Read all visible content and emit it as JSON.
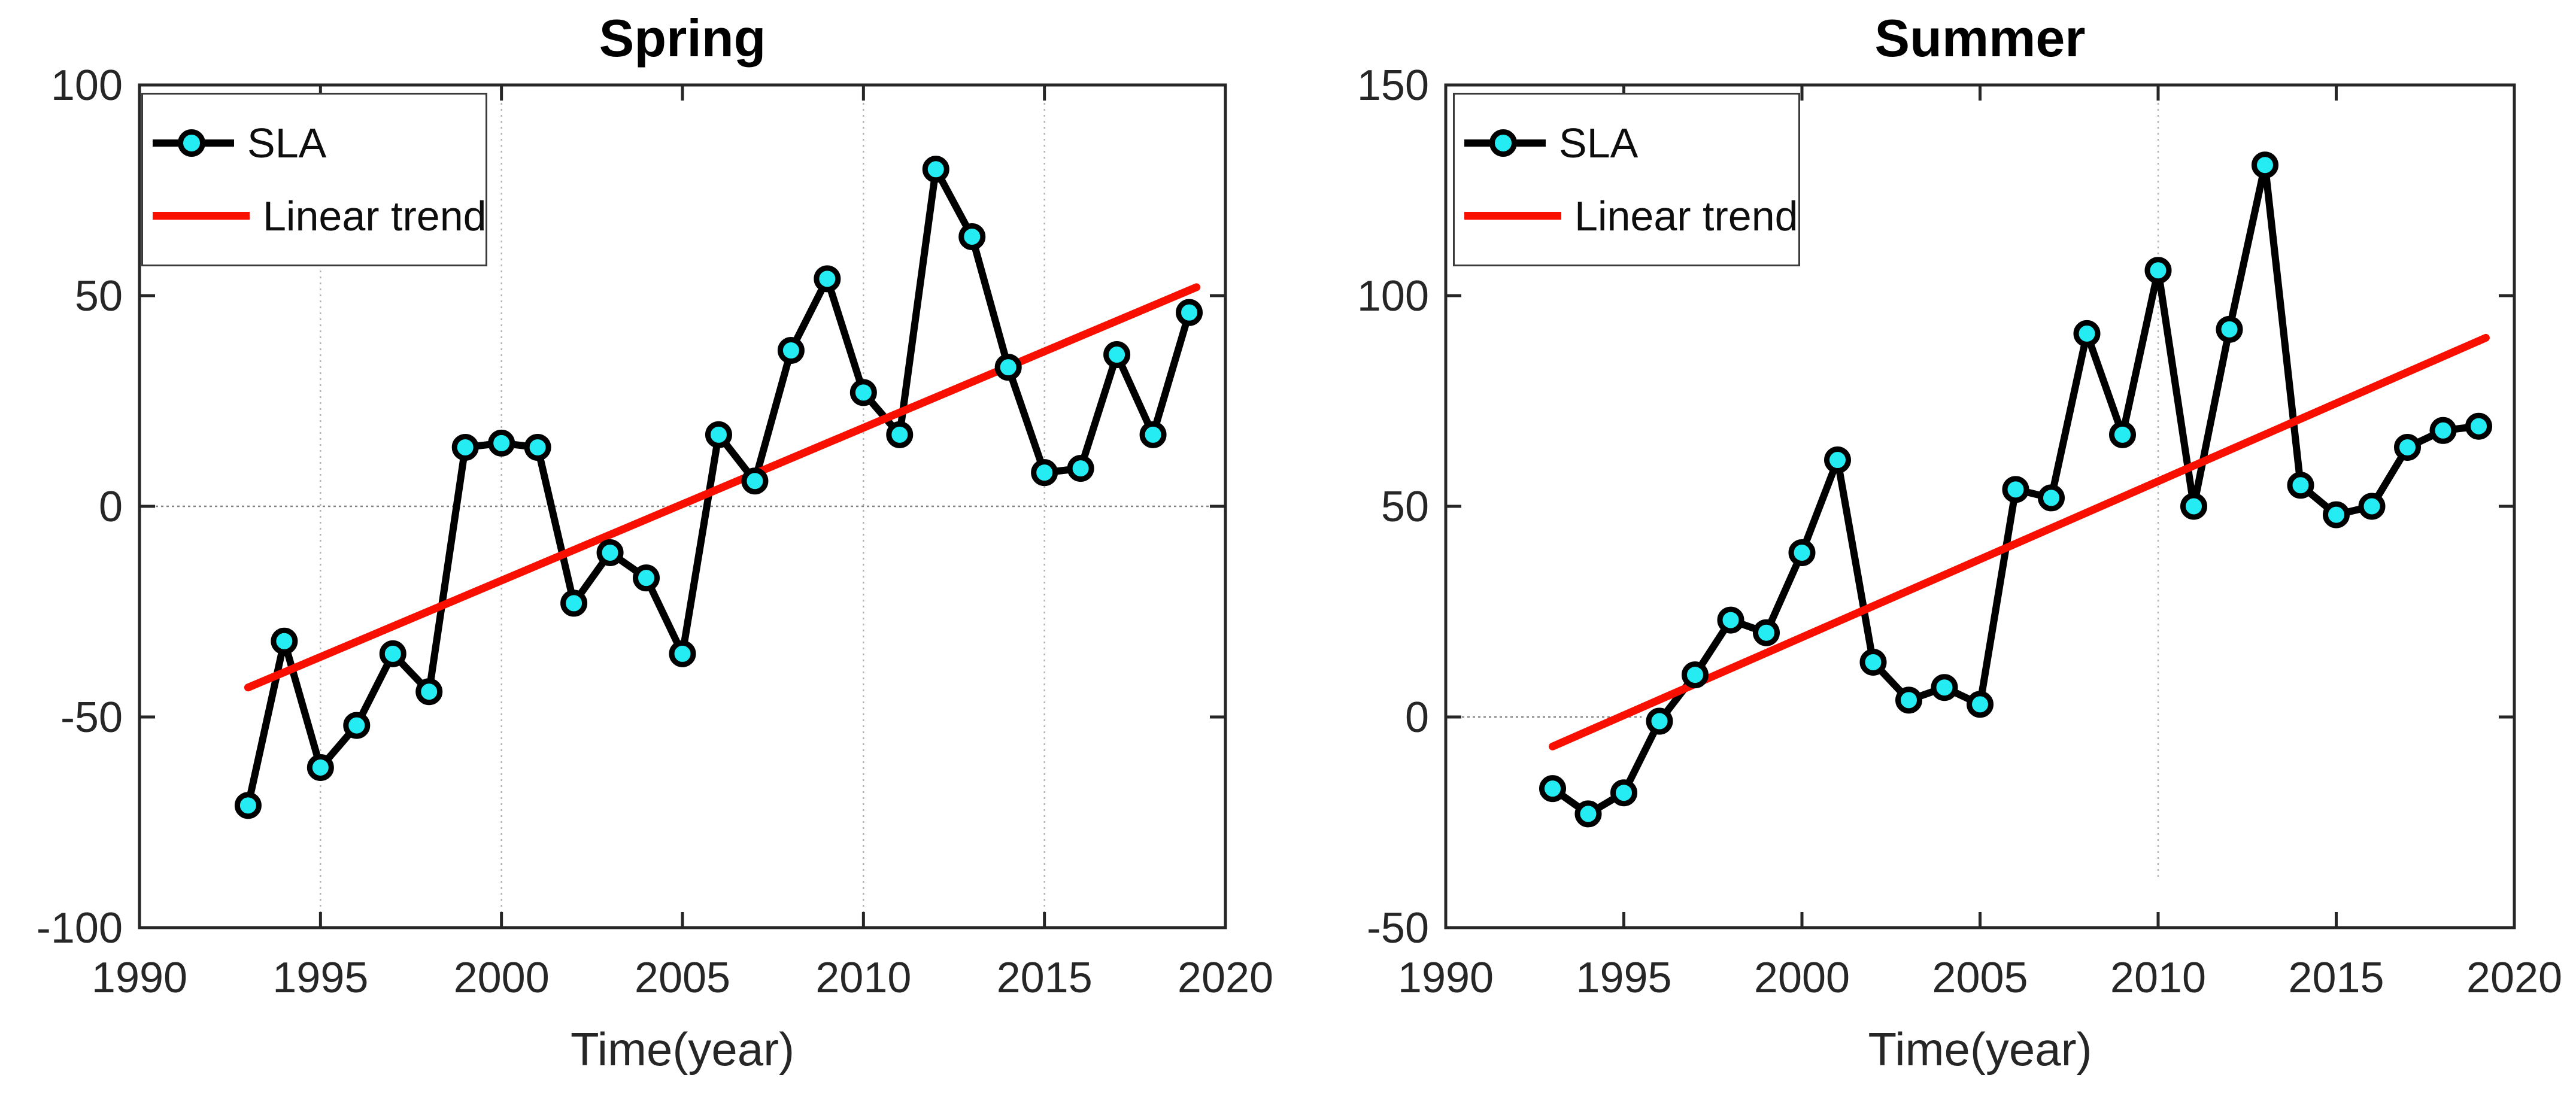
{
  "figure": {
    "background": "#ffffff",
    "marker_fill": "#25EBF2",
    "marker_edge": "#000000",
    "sla_line_color": "#000000",
    "trend_color": "#f80f00",
    "axis_color": "#262626",
    "grid_color": "#9a9a9a",
    "zero_line_color": "#777777"
  },
  "chart_data": [
    {
      "type": "line",
      "panel": "left",
      "title": "Spring",
      "xlabel": "Time(year)",
      "legend": [
        "SLA",
        "Linear trend"
      ],
      "xlim": [
        1990,
        2020
      ],
      "ylim": [
        -100,
        100
      ],
      "x_ticks": [
        1990,
        1995,
        2000,
        2005,
        2010,
        2015,
        2020
      ],
      "y_ticks": [
        -100,
        -50,
        0,
        50,
        100
      ],
      "grid_x_years": [
        1995,
        2000,
        2010,
        2015
      ],
      "zero_line_span": [
        1990,
        2020
      ],
      "years": [
        1993,
        1994,
        1995,
        1996,
        1997,
        1998,
        1999,
        2000,
        2001,
        2002,
        2003,
        2004,
        2005,
        2006,
        2007,
        2008,
        2009,
        2010,
        2011,
        2012,
        2013,
        2014,
        2015,
        2016,
        2017,
        2018,
        2019
      ],
      "series": [
        {
          "name": "SLA",
          "values": [
            -71,
            -32,
            -62,
            -52,
            -35,
            -44,
            14,
            15,
            14,
            -23,
            -11,
            -17,
            -35,
            17,
            6,
            37,
            54,
            27,
            17,
            80,
            64,
            33,
            8,
            9,
            36,
            17,
            46
          ]
        },
        {
          "name": "Linear trend",
          "x": [
            1993,
            2019.2
          ],
          "y": [
            -43,
            52
          ]
        }
      ]
    },
    {
      "type": "line",
      "panel": "right",
      "title": "Summer",
      "xlabel": "Time(year)",
      "legend": [
        "SLA",
        "Linear trend"
      ],
      "xlim": [
        1990,
        2020
      ],
      "ylim": [
        -50,
        150
      ],
      "x_ticks": [
        1990,
        1995,
        2000,
        2005,
        2010,
        2015,
        2020
      ],
      "y_ticks": [
        -50,
        0,
        50,
        100,
        150
      ],
      "grid_x_years": [
        2010
      ],
      "grid_y_cut": 1465,
      "zero_line_span": [
        1990,
        1995.5
      ],
      "years": [
        1993,
        1994,
        1995,
        1996,
        1997,
        1998,
        1999,
        2000,
        2001,
        2002,
        2003,
        2004,
        2005,
        2006,
        2007,
        2008,
        2009,
        2010,
        2011,
        2012,
        2013,
        2014,
        2015,
        2016,
        2017,
        2018,
        2019
      ],
      "series": [
        {
          "name": "SLA",
          "values": [
            -17,
            -23,
            -18,
            -1,
            10,
            23,
            20,
            39,
            61,
            13,
            4,
            7,
            3,
            54,
            52,
            91,
            67,
            106,
            50,
            92,
            131,
            55,
            48,
            50,
            64,
            68,
            69
          ]
        },
        {
          "name": "Linear trend",
          "x": [
            1993,
            2019.2
          ],
          "y": [
            -7,
            90
          ]
        }
      ]
    }
  ]
}
